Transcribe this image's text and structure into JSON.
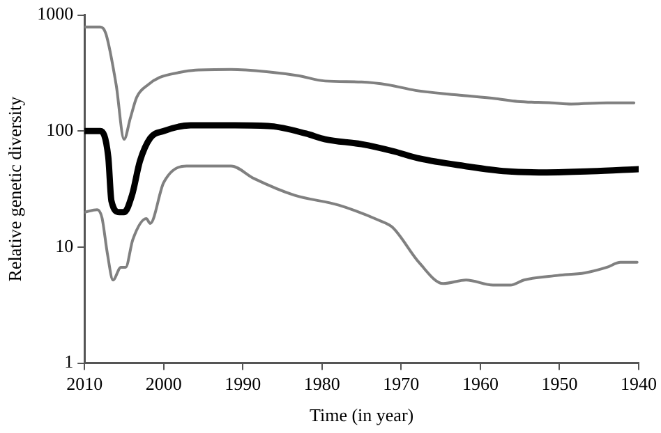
{
  "chart_data": {
    "type": "line",
    "xlabel": "Time (in year)",
    "ylabel": "Relative genetic diversity",
    "log": "y",
    "grid": false,
    "legend": false,
    "marker": "none",
    "line_style": "solid",
    "xlim": [
      2010,
      1940
    ],
    "xticks": [
      2010,
      2000,
      1990,
      1980,
      1970,
      1960,
      1950,
      1940
    ],
    "ylim": [
      1,
      1000
    ],
    "yticks": [
      1,
      10,
      100,
      1000
    ],
    "series": [
      {
        "color": "#808080",
        "x": [
          2010,
          2008,
          2007.3,
          2006,
          2005,
          2004.2,
          2003.4,
          2002,
          2000.5,
          1998,
          1996,
          1991.5,
          1987,
          1983,
          1979.6,
          1975,
          1971.6,
          1968.2,
          1963,
          1958,
          1955.3,
          1951,
          1948.5,
          1944,
          1940.6
        ],
        "values": [
          790,
          790,
          690,
          250,
          85,
          130,
          196,
          250,
          290,
          320,
          335,
          340,
          325,
          300,
          270,
          265,
          250,
          224,
          205,
          190,
          180,
          175,
          171,
          175,
          175
        ]
      },
      {
        "color": "#000000",
        "x": [
          2010,
          2008,
          2007,
          2006.6,
          2005.6,
          2005,
          2004,
          2003,
          2001.7,
          2000,
          1996.6,
          1991,
          1986.4,
          1982,
          1979.6,
          1975,
          1971,
          1967.7,
          1962,
          1956.7,
          1951.6,
          1946,
          1940
        ],
        "values": [
          100,
          100,
          60,
          25,
          20,
          20,
          28,
          55,
          87,
          100,
          112,
          112,
          110,
          95,
          85,
          77,
          67,
          58,
          50,
          45,
          44,
          45,
          47
        ]
      },
      {
        "color": "#808080",
        "x": [
          2010,
          2008.4,
          2007.8,
          2007.1,
          2006.4,
          2005.4,
          2004.8,
          2003.9,
          2002.2,
          2001.7,
          2000,
          1997.1,
          1991.5,
          1988.6,
          1983.5,
          1977.9,
          1972.8,
          1971.1,
          1967.7,
          1964.7,
          1961.8,
          1958.4,
          1956.2,
          1954.5,
          1950.2,
          1946.8,
          1944,
          1942.3,
          1940.2
        ],
        "values": [
          20,
          21,
          18,
          8.7,
          5.2,
          6.7,
          6.7,
          11.6,
          17.6,
          16,
          36,
          50,
          50,
          39,
          28,
          23,
          17,
          14.8,
          7.3,
          4.85,
          5.2,
          4.7,
          4.7,
          5.2,
          5.7,
          6,
          6.7,
          7.4,
          7.4
        ]
      }
    ]
  }
}
